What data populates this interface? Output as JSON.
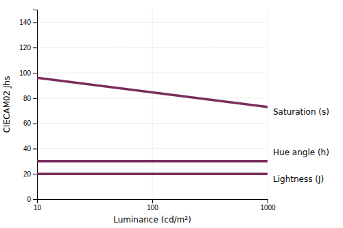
{
  "chart_data": {
    "type": "line",
    "x": [
      10,
      1000
    ],
    "series": [
      {
        "name": "Saturation (s)",
        "color": "#7B2D5E",
        "values": [
          96,
          73
        ]
      },
      {
        "name": "Hue angle (h)",
        "color": "#7B2D5E",
        "values": [
          30,
          30
        ]
      },
      {
        "name": "Lightness (J)",
        "color": "#7B2D5E",
        "values": [
          20,
          20
        ]
      }
    ],
    "x_label": "Luminance (cd/m²)",
    "y_label": "CIECAM02 Jhs",
    "log": "x",
    "xlim": [
      10,
      1000
    ],
    "xticks": [
      10,
      100,
      1000
    ],
    "ylim": [
      0,
      150
    ],
    "yticks": [
      0,
      20,
      40,
      60,
      80,
      100,
      120,
      140
    ],
    "grid": true
  }
}
